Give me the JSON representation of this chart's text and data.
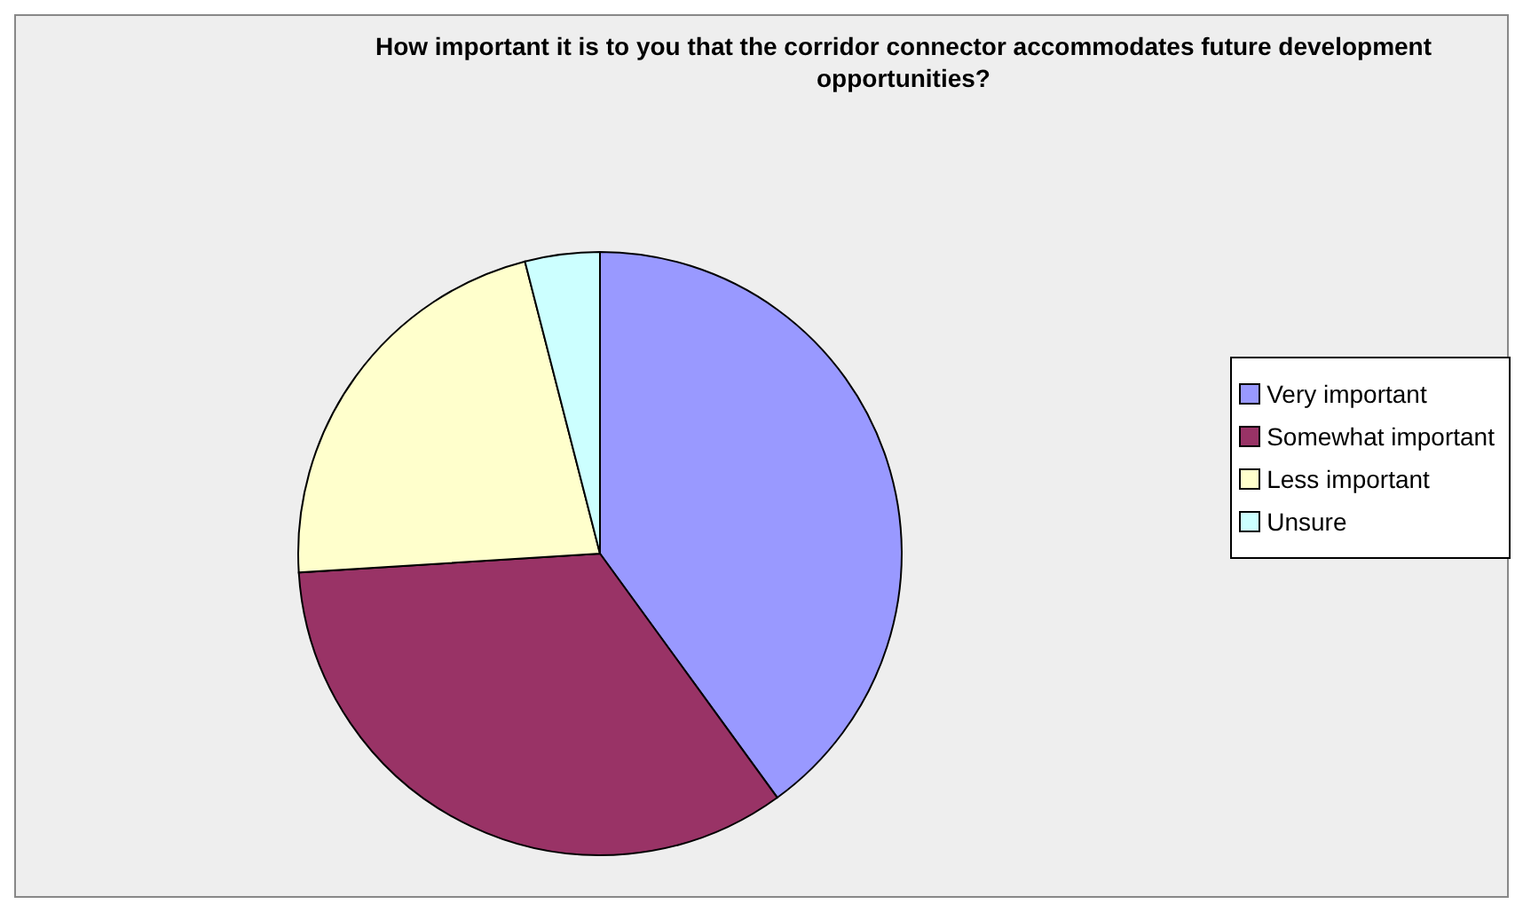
{
  "chart_data": {
    "type": "pie",
    "title": "How important it is to you that the corridor connector accommodates future development opportunities?",
    "categories": [
      "Very important",
      "Somewhat important",
      "Less important",
      "Unsure"
    ],
    "values": [
      40,
      34,
      22,
      4
    ],
    "colors": [
      "#9999ff",
      "#993366",
      "#ffffcc",
      "#ccffff"
    ],
    "legend": "right"
  }
}
